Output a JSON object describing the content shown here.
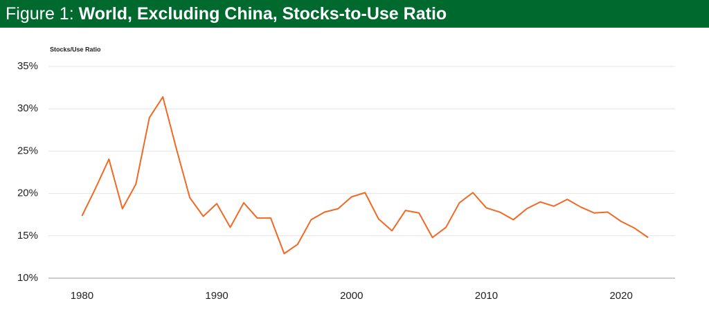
{
  "chart_data": {
    "type": "line",
    "title_prefix": "Figure 1:",
    "title": "World, Excluding China, Stocks-to-Use Ratio",
    "ylabel": "Stocks/Use Ratio",
    "x": [
      1980,
      1981,
      1982,
      1983,
      1984,
      1985,
      1986,
      1987,
      1988,
      1989,
      1990,
      1991,
      1992,
      1993,
      1994,
      1995,
      1996,
      1997,
      1998,
      1999,
      2000,
      2001,
      2002,
      2003,
      2004,
      2005,
      2006,
      2007,
      2008,
      2009,
      2010,
      2011,
      2012,
      2013,
      2014,
      2015,
      2016,
      2017,
      2018,
      2019,
      2020,
      2021,
      2022
    ],
    "series": [
      {
        "name": "Stocks/Use Ratio",
        "color": "#f26722",
        "values": [
          17.35,
          20.6,
          24.05,
          18.2,
          21.1,
          28.95,
          31.4,
          25.3,
          19.5,
          17.3,
          18.8,
          16.0,
          18.9,
          17.1,
          17.1,
          12.9,
          14.0,
          16.9,
          17.8,
          18.2,
          19.6,
          20.1,
          17.0,
          15.6,
          18.0,
          17.7,
          14.8,
          16.0,
          18.9,
          20.1,
          18.3,
          17.8,
          16.9,
          18.2,
          19.0,
          18.5,
          19.3,
          18.4,
          17.7,
          17.8,
          16.7,
          15.9,
          14.8
        ]
      }
    ],
    "xlim": [
      1977,
      2024
    ],
    "xticks": [
      1980,
      1990,
      2000,
      2010,
      2020
    ],
    "ylim": [
      10,
      35
    ],
    "yticks": [
      {
        "value": 10,
        "label": "10%"
      },
      {
        "value": 15,
        "label": "15%"
      },
      {
        "value": 20,
        "label": "20%"
      },
      {
        "value": 25,
        "label": "25%"
      },
      {
        "value": 30,
        "label": "30%"
      },
      {
        "value": 35,
        "label": "35%"
      }
    ],
    "grid": true,
    "header_color": "#006a2e"
  }
}
